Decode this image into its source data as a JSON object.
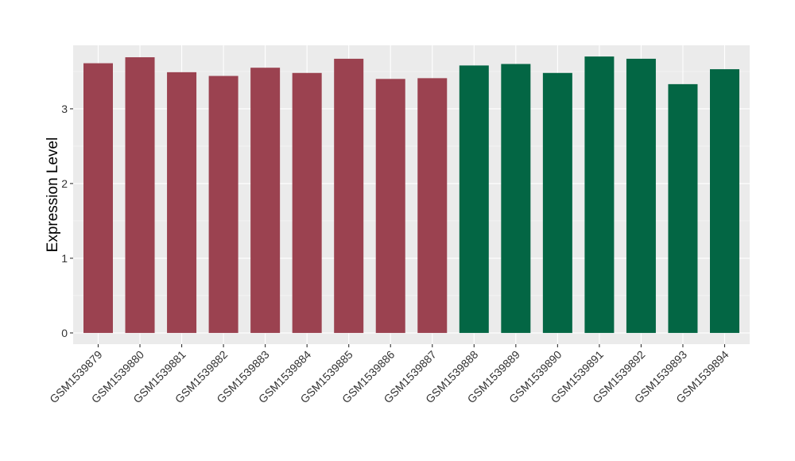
{
  "chart_data": {
    "type": "bar",
    "ylabel": "Expression Level",
    "xlabel": "",
    "ylim": [
      -0.15,
      3.85
    ],
    "yticks": [
      0,
      1,
      2,
      3
    ],
    "grid": true,
    "legend": "none",
    "categories": [
      "GSM1539879",
      "GSM1539880",
      "GSM1539881",
      "GSM1539882",
      "GSM1539883",
      "GSM1539884",
      "GSM1539885",
      "GSM1539886",
      "GSM1539887",
      "GSM1539888",
      "GSM1539889",
      "GSM1539890",
      "GSM1539891",
      "GSM1539892",
      "GSM1539893",
      "GSM1539894"
    ],
    "values": [
      3.61,
      3.69,
      3.49,
      3.44,
      3.55,
      3.48,
      3.67,
      3.4,
      3.41,
      3.58,
      3.6,
      3.48,
      3.7,
      3.67,
      3.33,
      3.53
    ],
    "groups": [
      0,
      0,
      0,
      0,
      0,
      0,
      0,
      0,
      0,
      1,
      1,
      1,
      1,
      1,
      1,
      1
    ],
    "group_colors": [
      "#9b4250",
      "#036644"
    ],
    "panel_background": "#ebebeb",
    "gridline_color": "#ffffff"
  }
}
